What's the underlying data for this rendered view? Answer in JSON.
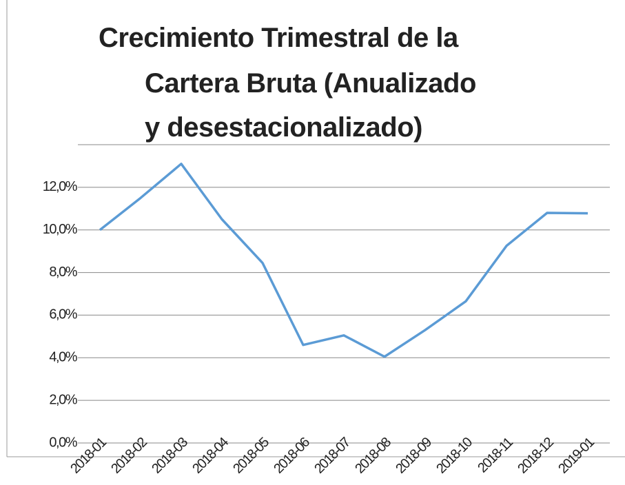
{
  "chart_data": {
    "type": "line",
    "title": [
      "Crecimiento Trimestral de la",
      "Cartera Bruta  (Anualizado",
      "y desestacionalizado)"
    ],
    "categories": [
      "2018-01",
      "2018-02",
      "2018-03",
      "2018-04",
      "2018-05",
      "2018-06",
      "2018-07",
      "2018-08",
      "2018-09",
      "2018-10",
      "2018-11",
      "2018-12",
      "2019-01"
    ],
    "values": [
      10.0,
      11.5,
      13.1,
      10.5,
      8.45,
      4.6,
      5.05,
      4.05,
      5.3,
      6.65,
      9.25,
      10.8,
      10.78
    ],
    "color": "#5b9bd5",
    "ylim": [
      0,
      14
    ],
    "yticks": [
      {
        "value": 0,
        "label": "0,0%"
      },
      {
        "value": 2,
        "label": "2,0%"
      },
      {
        "value": 4,
        "label": "4,0%"
      },
      {
        "value": 6,
        "label": "6,0%"
      },
      {
        "value": 8,
        "label": "8,0%"
      },
      {
        "value": 10,
        "label": "10,0%"
      },
      {
        "value": 12,
        "label": "12,0%"
      }
    ],
    "grid": true
  }
}
